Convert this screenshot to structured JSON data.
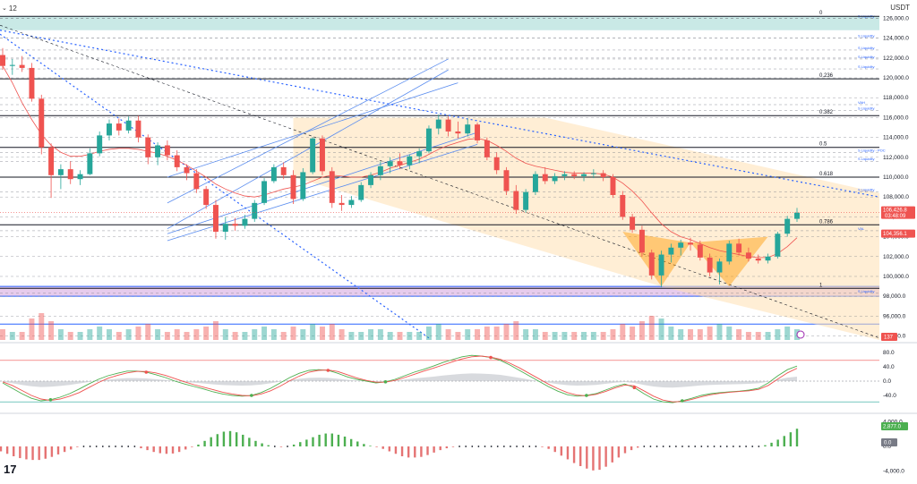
{
  "toolbar": {
    "interval_label": "12",
    "currency_label": "USDT"
  },
  "logo_text": "17",
  "colors": {
    "up": "#26a69a",
    "down": "#ef5350",
    "fib_zone": "#ffe0b2",
    "liquidity_top_zone": "#b2dfdb",
    "liquidity_bottom_zone": "#e1bee7",
    "channel": "#5b8def",
    "trend_dotted": "#2962ff",
    "macd_fast": "#ef5350",
    "macd_slow": "#4caf50",
    "price_tag": "#ef5350"
  },
  "chart_data": [
    {
      "type": "candlestick",
      "title": "",
      "y_ticks": [
        "126,000.0",
        "124,000.0",
        "122,000.0",
        "120,000.0",
        "118,000.0",
        "116,000.0",
        "114,000.0",
        "112,000.0",
        "110,000.0",
        "108,000.0",
        "106,000.0",
        "104,000.0",
        "102,000.0",
        "100,000.0",
        "98,000.0",
        "96,000.0",
        "94,000.0"
      ],
      "ylim": [
        93600,
        126400
      ],
      "fib_levels": [
        {
          "label": "0",
          "price": 126200
        },
        {
          "label": "0.236",
          "price": 119900
        },
        {
          "label": "0.382",
          "price": 116200
        },
        {
          "label": "0.5",
          "price": 113000
        },
        {
          "label": "0.618",
          "price": 110000
        },
        {
          "label": "0.786",
          "price": 105200
        },
        {
          "label": "1",
          "price": 98800
        }
      ],
      "annotations": [
        {
          "text": "S Liquidity",
          "price": 126000
        },
        {
          "text": "S Liquidity",
          "price": 124000
        },
        {
          "text": "S Liquidity",
          "price": 122800
        },
        {
          "text": "S Liquidity",
          "price": 121900
        },
        {
          "text": "S Liquidity",
          "price": 120900
        },
        {
          "text": "VAH",
          "price": 117300
        },
        {
          "text": "S Liquidity",
          "price": 116700
        },
        {
          "text": "S Liquidity - POC",
          "price": 112500
        },
        {
          "text": "S Liquidity",
          "price": 111600
        },
        {
          "text": "S Liquidity",
          "price": 108500
        },
        {
          "text": "VAL",
          "price": 104600
        },
        {
          "text": "S Liquidity",
          "price": 98300
        }
      ],
      "current_price": {
        "value": "106,426.8",
        "countdown": "03:48:09",
        "price": 106427
      },
      "level_tag": {
        "value": "104,356.1",
        "price": 104356
      },
      "volume_tag": "137",
      "candles": [
        [
          122300,
          123000,
          120800,
          121200
        ],
        [
          121200,
          121900,
          120300,
          121300
        ],
        [
          121300,
          122200,
          120600,
          121000
        ],
        [
          121000,
          121500,
          117600,
          117900
        ],
        [
          117900,
          118300,
          112300,
          113000
        ],
        [
          113000,
          113400,
          107900,
          110200
        ],
        [
          110200,
          111300,
          108800,
          110800
        ],
        [
          110800,
          111600,
          109300,
          109800
        ],
        [
          109800,
          110700,
          109200,
          110300
        ],
        [
          110300,
          112900,
          110200,
          112400
        ],
        [
          112400,
          114600,
          112100,
          114200
        ],
        [
          114200,
          115800,
          113700,
          115400
        ],
        [
          115400,
          115900,
          114200,
          114700
        ],
        [
          114700,
          116100,
          114400,
          115700
        ],
        [
          115700,
          116200,
          113500,
          114000
        ],
        [
          114000,
          114300,
          111300,
          112000
        ],
        [
          112000,
          113500,
          111200,
          113200
        ],
        [
          113200,
          113700,
          111700,
          112200
        ],
        [
          112200,
          112700,
          110600,
          111000
        ],
        [
          111000,
          111300,
          109700,
          110400
        ],
        [
          110400,
          110800,
          108400,
          108800
        ],
        [
          108800,
          109100,
          106800,
          107200
        ],
        [
          107200,
          107700,
          103800,
          104500
        ],
        [
          104500,
          106000,
          103700,
          105300
        ],
        [
          105300,
          105900,
          104600,
          105100
        ],
        [
          105100,
          106200,
          104800,
          105800
        ],
        [
          105800,
          107700,
          105500,
          107400
        ],
        [
          107400,
          109900,
          107200,
          109600
        ],
        [
          109600,
          111300,
          109400,
          111000
        ],
        [
          111000,
          111500,
          109800,
          110200
        ],
        [
          110200,
          110700,
          107300,
          107800
        ],
        [
          107800,
          110900,
          107600,
          110500
        ],
        [
          110500,
          114000,
          110300,
          113900
        ],
        [
          113900,
          114200,
          110200,
          110600
        ],
        [
          110600,
          111000,
          106900,
          107400
        ],
        [
          107400,
          108200,
          106600,
          107200
        ],
        [
          107200,
          108100,
          106900,
          107700
        ],
        [
          107700,
          109500,
          107500,
          109200
        ],
        [
          109200,
          110500,
          108900,
          110200
        ],
        [
          110200,
          111600,
          109700,
          111100
        ],
        [
          111100,
          112000,
          110400,
          111600
        ],
        [
          111600,
          112400,
          110800,
          111200
        ],
        [
          111200,
          112300,
          110800,
          112100
        ],
        [
          112100,
          112900,
          111400,
          112600
        ],
        [
          112600,
          115200,
          112400,
          114900
        ],
        [
          114900,
          116300,
          114300,
          115800
        ],
        [
          115800,
          116100,
          114100,
          114600
        ],
        [
          114600,
          115600,
          113900,
          114400
        ],
        [
          114400,
          115900,
          114100,
          115300
        ],
        [
          115300,
          115500,
          113400,
          113700
        ],
        [
          113700,
          114000,
          111700,
          112000
        ],
        [
          112000,
          112500,
          110300,
          110700
        ],
        [
          110700,
          111000,
          108200,
          108600
        ],
        [
          108600,
          109200,
          106300,
          106700
        ],
        [
          106700,
          108800,
          106400,
          108500
        ],
        [
          108500,
          110600,
          108200,
          110300
        ],
        [
          110300,
          111000,
          109300,
          109600
        ],
        [
          109600,
          110400,
          109300,
          110100
        ],
        [
          110100,
          110600,
          109700,
          110300
        ],
        [
          110300,
          110600,
          109800,
          110100
        ],
        [
          110100,
          110500,
          109600,
          110300
        ],
        [
          110300,
          110800,
          109900,
          110400
        ],
        [
          110400,
          110700,
          109600,
          110000
        ],
        [
          110000,
          110300,
          107900,
          108200
        ],
        [
          108200,
          108600,
          105700,
          106000
        ],
        [
          106000,
          106300,
          104400,
          104700
        ],
        [
          104700,
          105100,
          102000,
          102400
        ],
        [
          102400,
          102700,
          99700,
          100100
        ],
        [
          100100,
          102600,
          98900,
          102200
        ],
        [
          102200,
          103300,
          101400,
          102900
        ],
        [
          102900,
          103700,
          102100,
          103400
        ],
        [
          103400,
          103900,
          102600,
          103200
        ],
        [
          103200,
          103600,
          101600,
          101900
        ],
        [
          101900,
          102300,
          100000,
          100400
        ],
        [
          100400,
          101800,
          99200,
          101500
        ],
        [
          101500,
          103600,
          101200,
          103300
        ],
        [
          103300,
          103800,
          102100,
          102400
        ],
        [
          102400,
          102900,
          101500,
          101800
        ],
        [
          101800,
          102200,
          101300,
          101600
        ],
        [
          101600,
          102300,
          101300,
          102000
        ],
        [
          102000,
          104500,
          101800,
          104300
        ],
        [
          104300,
          106100,
          104000,
          105800
        ],
        [
          105800,
          106900,
          105500,
          106427
        ]
      ],
      "volume": [
        4,
        3,
        3,
        8,
        10,
        7,
        4,
        3,
        3,
        4,
        5,
        4,
        3,
        4,
        5,
        6,
        4,
        3,
        4,
        3,
        4,
        5,
        7,
        4,
        3,
        3,
        4,
        5,
        4,
        3,
        5,
        4,
        6,
        5,
        6,
        4,
        3,
        3,
        4,
        4,
        3,
        3,
        3,
        3,
        5,
        6,
        4,
        3,
        4,
        4,
        5,
        5,
        6,
        7,
        4,
        4,
        3,
        3,
        3,
        3,
        3,
        3,
        3,
        4,
        6,
        5,
        7,
        9,
        8,
        5,
        4,
        4,
        4,
        5,
        6,
        5,
        4,
        3,
        3,
        3,
        4,
        5,
        4
      ],
      "ma": [
        121200,
        119500,
        117500,
        115800,
        114300,
        113200,
        112500,
        112100,
        112100,
        112300,
        112600,
        112800,
        112900,
        112900,
        112800,
        112600,
        112400,
        112100,
        111700,
        111200,
        110600,
        110000,
        109300,
        108800,
        108400,
        108100,
        108000,
        108200,
        108500,
        108800,
        109000,
        109200,
        109600,
        110000,
        110200,
        110100,
        110000,
        110000,
        110200,
        110500,
        110900,
        111200,
        111500,
        111800,
        112300,
        112800,
        113200,
        113500,
        113800,
        113900,
        113700,
        113200,
        112600,
        111900,
        111400,
        111100,
        110900,
        110700,
        110500,
        110400,
        110400,
        110400,
        110300,
        110000,
        109400,
        108600,
        107600,
        106400,
        105300,
        104500,
        104000,
        103700,
        103300,
        102900,
        102600,
        102400,
        102200,
        102000,
        101900,
        101900,
        102300,
        103000,
        103900
      ]
    },
    {
      "type": "line",
      "title": "",
      "y_ticks": [
        "80.0",
        "40.0",
        "0.0",
        "-40.0"
      ],
      "ylim": [
        -90,
        95
      ],
      "series": [
        {
          "values": [
            -5,
            -20,
            -35,
            -48,
            -55,
            -52,
            -45,
            -35,
            -22,
            -8,
            5,
            15,
            22,
            28,
            28,
            25,
            18,
            10,
            0,
            -8,
            -15,
            -22,
            -30,
            -36,
            -40,
            -42,
            -40,
            -32,
            -20,
            -5,
            10,
            22,
            30,
            32,
            30,
            22,
            12,
            5,
            0,
            -5,
            -2,
            5,
            15,
            25,
            33,
            42,
            52,
            60,
            68,
            72,
            70,
            66,
            58,
            45,
            30,
            15,
            0,
            -15,
            -28,
            -38,
            -42,
            -40,
            -35,
            -25,
            -15,
            -8,
            -18,
            -35,
            -50,
            -58,
            -60,
            -55,
            -48,
            -40,
            -35,
            -32,
            -30,
            -28,
            -25,
            -20,
            -5,
            15,
            32,
            42
          ]
        },
        {
          "values": [
            -2,
            -12,
            -26,
            -40,
            -50,
            -54,
            -50,
            -42,
            -32,
            -18,
            -4,
            8,
            16,
            23,
            27,
            27,
            23,
            16,
            7,
            -2,
            -10,
            -17,
            -24,
            -31,
            -36,
            -40,
            -41,
            -36,
            -27,
            -14,
            1,
            14,
            25,
            30,
            31,
            27,
            18,
            9,
            2,
            -3,
            -3,
            2,
            10,
            19,
            28,
            36,
            45,
            54,
            62,
            68,
            70,
            67,
            61,
            50,
            37,
            22,
            7,
            -8,
            -21,
            -32,
            -39,
            -41,
            -37,
            -29,
            -19,
            -11,
            -13,
            -27,
            -42,
            -53,
            -58,
            -57,
            -51,
            -44,
            -38,
            -34,
            -31,
            -29,
            -27,
            -23,
            -12,
            6,
            23,
            36
          ]
        }
      ]
    },
    {
      "type": "bar",
      "title": "",
      "y_ticks": [
        "4,000.0",
        "0.0",
        "-4,000.0"
      ],
      "ylim": [
        -4800,
        4800
      ],
      "histogram_tag": "2,877.0",
      "zero_tag": "0.0",
      "values": [
        -800,
        -1200,
        -1600,
        -1900,
        -2100,
        -2200,
        -2200,
        -2000,
        -1700,
        -1300,
        -900,
        -500,
        -100,
        0,
        0,
        0,
        0,
        0,
        0,
        0,
        0,
        0,
        -300,
        -600,
        -900,
        -1100,
        -1200,
        -1150,
        -900,
        -500,
        -100,
        300,
        900,
        1500,
        2000,
        2400,
        2500,
        2300,
        1900,
        1400,
        900,
        500,
        200,
        0,
        -100,
        0,
        300,
        700,
        1100,
        1500,
        1900,
        2100,
        2100,
        1900,
        1600,
        1200,
        800,
        400,
        100,
        -100,
        -400,
        -800,
        -1200,
        -1600,
        -1800,
        -1800,
        -1700,
        -1400,
        -1000,
        -600,
        -300,
        -100,
        0,
        0,
        0,
        0,
        0,
        0,
        0,
        0,
        0,
        0,
        0,
        0,
        0,
        -100,
        -400,
        -900,
        -1500,
        -2100,
        -2700,
        -3200,
        -3600,
        -3900,
        -3800,
        -3300,
        -2600,
        -1800,
        -1100,
        -600,
        -200,
        0,
        0,
        0,
        0,
        0,
        0,
        0,
        0,
        0,
        0,
        0,
        0,
        0,
        0,
        0,
        0,
        0,
        0,
        0,
        200,
        600,
        1100,
        1700,
        2300,
        2877
      ]
    }
  ]
}
